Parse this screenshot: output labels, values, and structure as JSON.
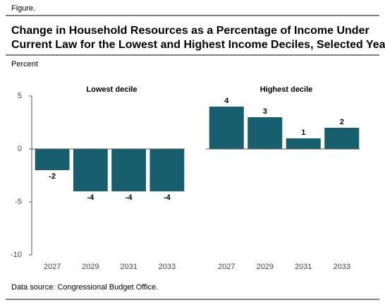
{
  "label": "Figure.",
  "title": [
    "Change in Household Resources as a Percentage of Income Under",
    "Current Law for the Lowest and Highest Income Deciles, Selected Years"
  ],
  "y_label": "Percent",
  "source": "Data source: Congressional Budget Office.",
  "chart_data": [
    {
      "type": "bar",
      "title": "Lowest decile",
      "categories": [
        "2027",
        "2029",
        "2031",
        "2033"
      ],
      "values": [
        -2,
        -4,
        -4,
        -4
      ],
      "color": "#175e6e",
      "ylim": [
        -10,
        5
      ],
      "yticks": [
        -10,
        -5,
        0,
        5
      ]
    },
    {
      "type": "bar",
      "title": "Highest decile",
      "categories": [
        "2027",
        "2029",
        "2031",
        "2033"
      ],
      "values": [
        4,
        3,
        1,
        2
      ],
      "color": "#175e6e",
      "ylim": [
        -10,
        5
      ]
    }
  ]
}
